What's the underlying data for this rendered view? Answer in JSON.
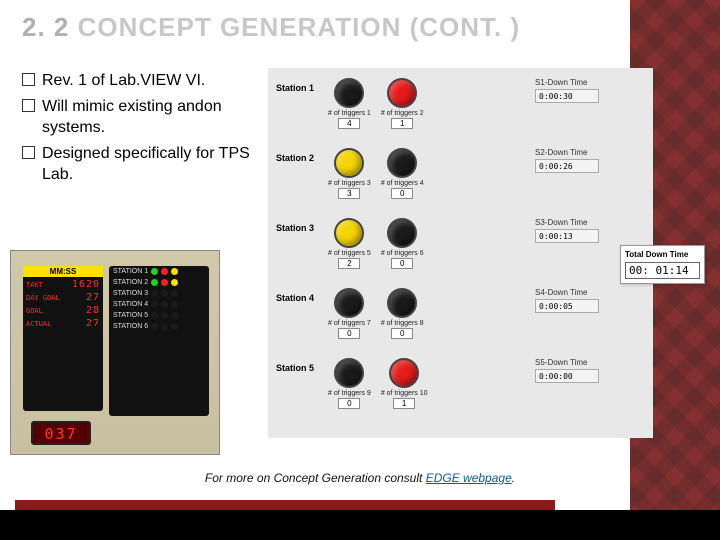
{
  "title": {
    "num": "2. 2",
    "text": "CONCEPT GENERATION (CONT. )"
  },
  "bullets": [
    "Rev. 1 of Lab.VIEW VI.",
    "Will mimic existing andon systems.",
    "Designed specifically for TPS Lab."
  ],
  "photo": {
    "led_header": "MM:SS",
    "led_rows": [
      {
        "lbl": "TAKT",
        "val": "1620"
      },
      {
        "lbl": "DAY GOAL",
        "val": "27"
      },
      {
        "lbl": "GOAL",
        "val": "28"
      },
      {
        "lbl": "ACTUAL",
        "val": "27"
      }
    ],
    "stations": [
      {
        "name": "STATION 1",
        "dots": [
          "#21d321",
          "#ff2020",
          "#ffe000"
        ]
      },
      {
        "name": "STATION 2",
        "dots": [
          "#21d321",
          "#ff2020",
          "#ffe000"
        ]
      },
      {
        "name": "STATION 3",
        "dots": [
          "#1a1a1a",
          "#1a1a1a",
          "#1a1a1a"
        ]
      },
      {
        "name": "STATION 4",
        "dots": [
          "#1a1a1a",
          "#1a1a1a",
          "#1a1a1a"
        ]
      },
      {
        "name": "STATION 5",
        "dots": [
          "#1a1a1a",
          "#1a1a1a",
          "#1a1a1a"
        ]
      },
      {
        "name": "STATION 6",
        "dots": [
          "#1a1a1a",
          "#1a1a1a",
          "#1a1a1a"
        ]
      }
    ],
    "clock": "037"
  },
  "labview": {
    "rows": [
      {
        "label": "Station 1",
        "c1": "#1a1a1a",
        "c2": "#e51b1b",
        "t1": "# of triggers 1",
        "v1": "4",
        "t2": "# of triggers 2",
        "v2": "1",
        "dtop": 10,
        "dt_label": "S1-Down Time",
        "dt_val": "0:00:30"
      },
      {
        "label": "Station 2",
        "c1": "#f5d300",
        "c2": "#1a1a1a",
        "t1": "# of triggers 3",
        "v1": "3",
        "t2": "# of triggers 4",
        "v2": "0",
        "dtop": 80,
        "dt_label": "S2-Down Time",
        "dt_val": "0:00:26"
      },
      {
        "label": "Station 3",
        "c1": "#f5d300",
        "c2": "#1a1a1a",
        "t1": "# of triggers 5",
        "v1": "2",
        "t2": "# of triggers 6",
        "v2": "0",
        "dtop": 150,
        "dt_label": "S3-Down Time",
        "dt_val": "0:00:13"
      },
      {
        "label": "Station 4",
        "c1": "#1a1a1a",
        "c2": "#1a1a1a",
        "t1": "# of triggers 7",
        "v1": "0",
        "t2": "# of triggers 8",
        "v2": "0",
        "dtop": 220,
        "dt_label": "S4-Down Time",
        "dt_val": "0:00:05"
      },
      {
        "label": "Station 5",
        "c1": "#1a1a1a",
        "c2": "#e51b1b",
        "t1": "# of triggers 9",
        "v1": "0",
        "t2": "# of triggers 10",
        "v2": "1",
        "dtop": 290,
        "dt_label": "S5-Down Time",
        "dt_val": "0:00:00"
      }
    ]
  },
  "total": {
    "label": "Total Down Time",
    "value": "00: 01:14"
  },
  "footer": {
    "pre": "For more on Concept Generation consult ",
    "link": "EDGE webpage",
    "post": "."
  }
}
